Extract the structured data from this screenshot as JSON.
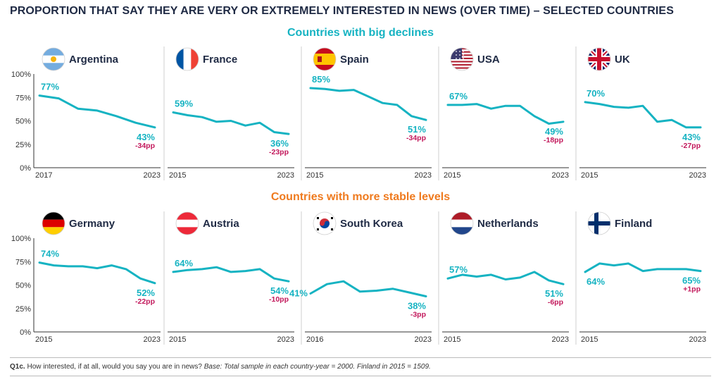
{
  "title": "PROPORTION THAT SAY THEY ARE VERY OR EXTREMELY INTERESTED IN NEWS (OVER TIME) – SELECTED COUNTRIES",
  "section_top": "Countries with big declines",
  "section_bottom": "Countries with more stable levels",
  "footnote": {
    "code": "Q1c.",
    "question": " How interested, if at all, would you say you are in news? ",
    "base": "Base: Total sample in each country-year = 2000. Finland in 2015 = 1509."
  },
  "colors": {
    "line": "#16b3c2",
    "change": "#c2185b",
    "top_heading": "#16b3c2",
    "bottom_heading": "#ef7a1e"
  },
  "y_ticks": [
    "0%",
    "25%",
    "50%",
    "75%",
    "100%"
  ],
  "chart_data": [
    {
      "type": "line",
      "country": "Argentina",
      "flag": "argentina-flag",
      "x": [
        2017,
        2018,
        2019,
        2020,
        2021,
        2022,
        2023
      ],
      "values": [
        77,
        74,
        63,
        61,
        55,
        48,
        43
      ],
      "ylim": [
        0,
        100
      ],
      "xticks": [
        "2017",
        "2023"
      ],
      "start_label": "77%",
      "end_label": "43%",
      "change_label": "-34pp"
    },
    {
      "type": "line",
      "country": "France",
      "flag": "france-flag",
      "x": [
        2015,
        2016,
        2017,
        2018,
        2019,
        2020,
        2021,
        2022,
        2023
      ],
      "values": [
        59,
        56,
        54,
        49,
        50,
        45,
        48,
        38,
        36
      ],
      "ylim": [
        0,
        100
      ],
      "xticks": [
        "2015",
        "2023"
      ],
      "start_label": "59%",
      "end_label": "36%",
      "change_label": "-23pp"
    },
    {
      "type": "line",
      "country": "Spain",
      "flag": "spain-flag",
      "x": [
        2015,
        2016,
        2017,
        2018,
        2019,
        2020,
        2021,
        2022,
        2023
      ],
      "values": [
        85,
        84,
        82,
        83,
        76,
        69,
        67,
        55,
        51
      ],
      "ylim": [
        0,
        100
      ],
      "xticks": [
        "2015",
        "2023"
      ],
      "start_label": "85%",
      "end_label": "51%",
      "change_label": "-34pp"
    },
    {
      "type": "line",
      "country": "USA",
      "flag": "usa-flag",
      "x": [
        2015,
        2016,
        2017,
        2018,
        2019,
        2020,
        2021,
        2022,
        2023
      ],
      "values": [
        67,
        67,
        68,
        63,
        66,
        66,
        55,
        47,
        49
      ],
      "ylim": [
        0,
        100
      ],
      "xticks": [
        "2015",
        "2023"
      ],
      "start_label": "67%",
      "end_label": "49%",
      "change_label": "-18pp"
    },
    {
      "type": "line",
      "country": "UK",
      "flag": "uk-flag",
      "x": [
        2015,
        2016,
        2017,
        2018,
        2019,
        2020,
        2021,
        2022,
        2023
      ],
      "values": [
        70,
        68,
        65,
        64,
        66,
        49,
        51,
        43,
        43
      ],
      "ylim": [
        0,
        100
      ],
      "xticks": [
        "2015",
        "2023"
      ],
      "start_label": "70%",
      "end_label": "43%",
      "change_label": "-27pp"
    },
    {
      "type": "line",
      "country": "Germany",
      "flag": "germany-flag",
      "x": [
        2015,
        2016,
        2017,
        2018,
        2019,
        2020,
        2021,
        2022,
        2023
      ],
      "values": [
        74,
        71,
        70,
        70,
        68,
        71,
        67,
        57,
        52
      ],
      "ylim": [
        0,
        100
      ],
      "xticks": [
        "2015",
        "2023"
      ],
      "start_label": "74%",
      "end_label": "52%",
      "change_label": "-22pp"
    },
    {
      "type": "line",
      "country": "Austria",
      "flag": "austria-flag",
      "x": [
        2015,
        2016,
        2017,
        2018,
        2019,
        2020,
        2021,
        2022,
        2023
      ],
      "values": [
        64,
        66,
        67,
        69,
        64,
        65,
        67,
        57,
        54
      ],
      "ylim": [
        0,
        100
      ],
      "xticks": [
        "2015",
        "2023"
      ],
      "start_label": "64%",
      "end_label": "54%",
      "change_label": "-10pp"
    },
    {
      "type": "line",
      "country": "South Korea",
      "flag": "south-korea-flag",
      "x": [
        2016,
        2017,
        2018,
        2019,
        2020,
        2021,
        2022,
        2023
      ],
      "values": [
        41,
        51,
        54,
        43,
        44,
        46,
        42,
        38
      ],
      "ylim": [
        0,
        100
      ],
      "xticks": [
        "2016",
        "2023"
      ],
      "start_label": "41%",
      "end_label": "38%",
      "change_label": "-3pp"
    },
    {
      "type": "line",
      "country": "Netherlands",
      "flag": "netherlands-flag",
      "x": [
        2015,
        2016,
        2017,
        2018,
        2019,
        2020,
        2021,
        2022,
        2023
      ],
      "values": [
        57,
        61,
        59,
        61,
        56,
        58,
        64,
        55,
        51
      ],
      "ylim": [
        0,
        100
      ],
      "xticks": [
        "2015",
        "2023"
      ],
      "start_label": "57%",
      "end_label": "51%",
      "change_label": "-6pp"
    },
    {
      "type": "line",
      "country": "Finland",
      "flag": "finland-flag",
      "x": [
        2015,
        2016,
        2017,
        2018,
        2019,
        2020,
        2021,
        2022,
        2023
      ],
      "values": [
        64,
        73,
        71,
        73,
        65,
        67,
        67,
        67,
        65
      ],
      "ylim": [
        0,
        100
      ],
      "xticks": [
        "2015",
        "2023"
      ],
      "start_label": "64%",
      "end_label": "65%",
      "change_label": "+1pp"
    }
  ]
}
